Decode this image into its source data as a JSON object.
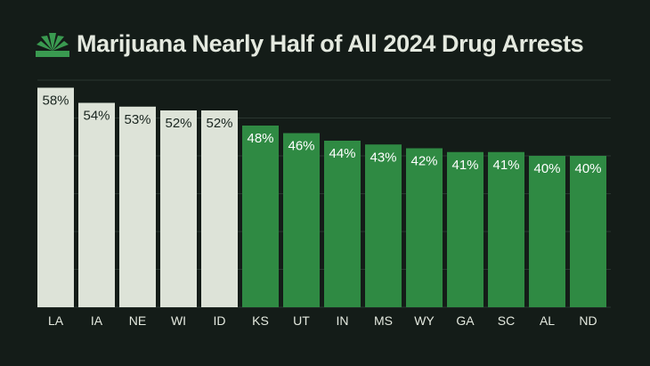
{
  "title": "Marijuana Nearly Half of All 2024 Drug Arrests",
  "colors": {
    "background": "#141c18",
    "bar_highlight": "#dde3d8",
    "bar_default": "#2f8a43",
    "gridline": "#2a3630",
    "logo": "#3a9a50"
  },
  "icons": {
    "logo": "cannabis-leaf-icon"
  },
  "chart_data": {
    "type": "bar",
    "title": "Marijuana Nearly Half of All 2024 Drug Arrests",
    "xlabel": "",
    "ylabel": "",
    "categories": [
      "LA",
      "IA",
      "NE",
      "WI",
      "ID",
      "KS",
      "UT",
      "IN",
      "MS",
      "WY",
      "GA",
      "SC",
      "AL",
      "ND"
    ],
    "values": [
      58,
      54,
      53,
      52,
      52,
      48,
      46,
      44,
      43,
      42,
      41,
      41,
      40,
      40
    ],
    "labels": [
      "58%",
      "54%",
      "53%",
      "52%",
      "52%",
      "48%",
      "46%",
      "44%",
      "43%",
      "42%",
      "41%",
      "41%",
      "40%",
      "40%"
    ],
    "highlighted": [
      true,
      true,
      true,
      true,
      true,
      false,
      false,
      false,
      false,
      false,
      false,
      false,
      false,
      false
    ],
    "ylim": [
      0,
      60
    ],
    "grid": true,
    "legend": "none"
  }
}
